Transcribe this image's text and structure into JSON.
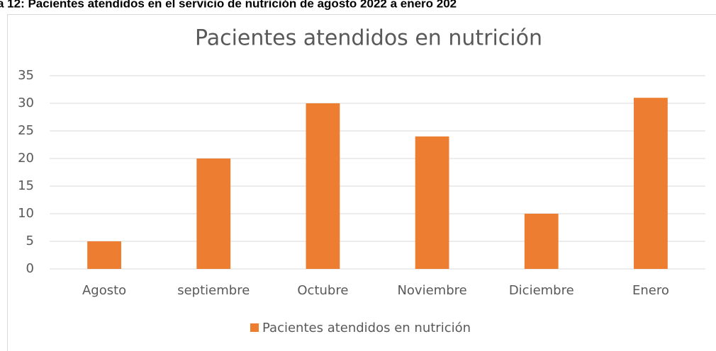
{
  "caption": "a 12: Pacientes atendidos en el servicio de nutrición de agosto 2022 a enero 202",
  "chart_data": {
    "type": "bar",
    "title": "Pacientes atendidos en nutrición",
    "categories": [
      "Agosto",
      "septiembre",
      "Octubre",
      "Noviembre",
      "Diciembre",
      "Enero"
    ],
    "series": [
      {
        "name": "Pacientes atendidos en nutrición",
        "color": "#ed7d31",
        "values": [
          5,
          20,
          30,
          24,
          10,
          31
        ]
      }
    ],
    "ylim": [
      0,
      35
    ],
    "yticks": [
      0,
      5,
      10,
      15,
      20,
      25,
      30,
      35
    ],
    "grid": true,
    "legend": "bottom"
  }
}
